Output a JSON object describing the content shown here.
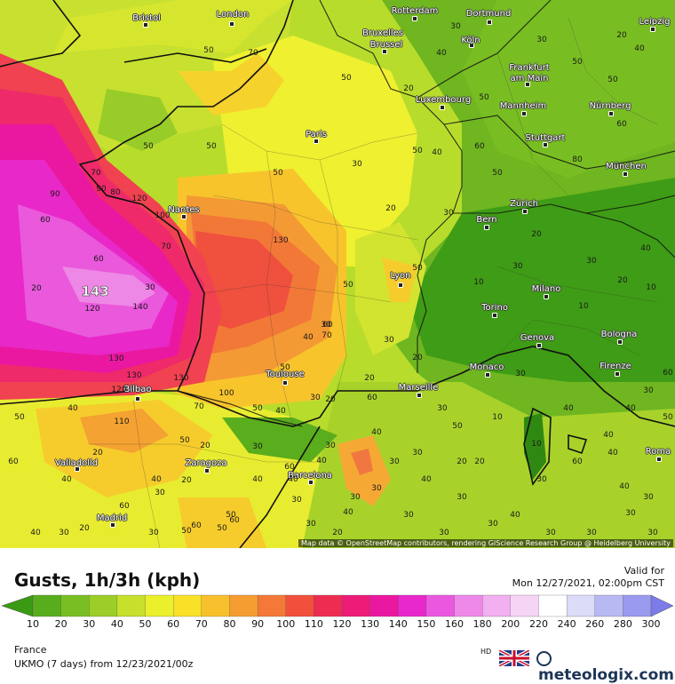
{
  "map": {
    "attribution": "Map data © OpenStreetMap contributors, rendering GIScience Research Group @ Heidelberg University",
    "max_value": "143",
    "cities": [
      "Bristol",
      "London",
      "Rotterdam",
      "Dortmund",
      "Leipzig",
      "Bruxelles",
      "Brussel",
      "Köln",
      "Frankfurt",
      "am Main",
      "Luxembourg",
      "Mannheim",
      "Nürnberg",
      "Paris",
      "Stuttgart",
      "München",
      "Nantes",
      "Bern",
      "Zürich",
      "Lyon",
      "Milano",
      "Torino",
      "Bologna",
      "Genova",
      "Monaco",
      "Firenze",
      "Toulouse",
      "Marseille",
      "Bilbao",
      "Valladolid",
      "Zaragoza",
      "Barcelona",
      "Roma",
      "Madrid"
    ],
    "values": [
      "50",
      "70",
      "50",
      "30",
      "40",
      "20",
      "50",
      "50",
      "50",
      "40",
      "30",
      "20",
      "50",
      "50",
      "30",
      "40",
      "60",
      "50",
      "50",
      "30",
      "20",
      "80",
      "60",
      "50",
      "70",
      "90",
      "80",
      "120",
      "130",
      "100",
      "90",
      "60",
      "70",
      "60",
      "50",
      "50",
      "30",
      "10",
      "10",
      "20",
      "30",
      "40",
      "30",
      "20",
      "10",
      "20",
      "30",
      "120",
      "140",
      "130",
      "130",
      "130",
      "120",
      "110",
      "100",
      "70",
      "40",
      "60",
      "70",
      "50",
      "50",
      "40",
      "30",
      "20",
      "20",
      "30",
      "20",
      "30",
      "50",
      "40",
      "30",
      "60",
      "40",
      "50",
      "20",
      "20",
      "30",
      "60",
      "40",
      "30",
      "20",
      "30",
      "60",
      "50",
      "30",
      "40",
      "30",
      "20",
      "10",
      "10",
      "30",
      "40",
      "40",
      "30",
      "40",
      "30",
      "60",
      "50",
      "40",
      "30",
      "30",
      "40",
      "30",
      "30",
      "30",
      "20",
      "30",
      "40",
      "40",
      "50",
      "60",
      "30",
      "20",
      "30",
      "40",
      "60",
      "50",
      "60",
      "50",
      "40",
      "30",
      "20",
      "30",
      "40",
      "30",
      "30",
      "40",
      "60",
      "40",
      "30",
      "30",
      "40",
      "30",
      "20",
      "30"
    ]
  },
  "legend": {
    "title": "Gusts, 1h/3h (kph)",
    "valid_label": "Valid for",
    "valid_time": "Mon 12/27/2021, 02:00pm CST",
    "ticks": [
      "10",
      "20",
      "30",
      "40",
      "50",
      "60",
      "70",
      "80",
      "90",
      "100",
      "110",
      "120",
      "130",
      "140",
      "150",
      "160",
      "180",
      "200",
      "220",
      "240",
      "260",
      "280",
      "300"
    ],
    "colors": [
      "#3a9a14",
      "#58ad1c",
      "#79bf24",
      "#9ccd28",
      "#c6e02c",
      "#eaf02c",
      "#f8e126",
      "#f8c02c",
      "#f69d32",
      "#f47838",
      "#f0503c",
      "#ee2c52",
      "#ec1c78",
      "#ea18a0",
      "#e828cc",
      "#ea58e0",
      "#ee88e8",
      "#f2b0f0",
      "#f6d4f6",
      "#ffffff",
      "#dcdcf8",
      "#b8b8f2",
      "#9a9aee",
      "#7c7ce8"
    ],
    "region": "France",
    "model": "UKMO (7 days) from 12/23/2021/00z",
    "hd": "HD",
    "brand": "meteologix.com"
  }
}
